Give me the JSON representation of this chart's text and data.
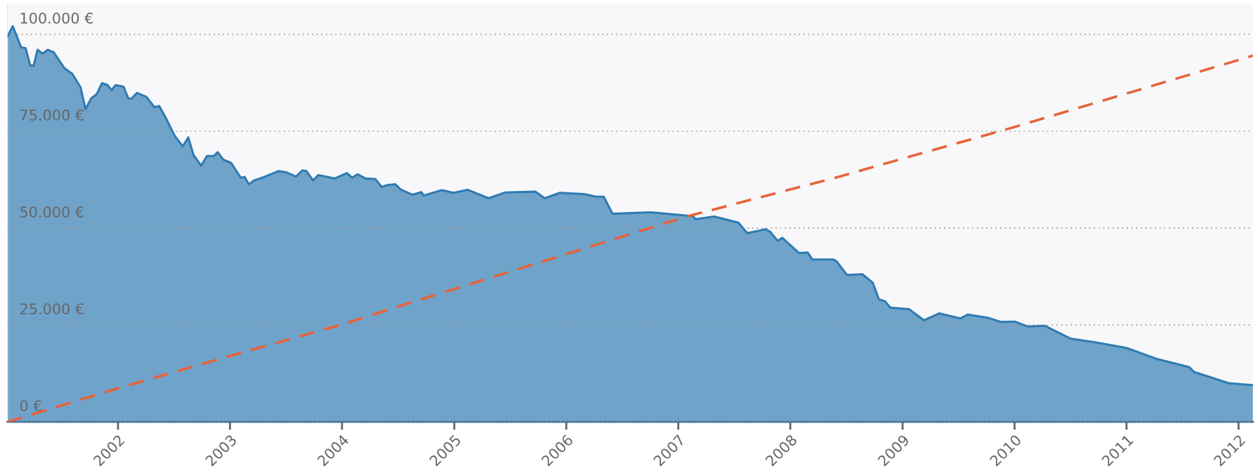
{
  "chart_data": {
    "type": "area",
    "series": [
      {
        "color": "#2f7bb1",
        "x": [
          "2001-01-06",
          "2001-01-23",
          "2001-02-19",
          "2001-03-06",
          "2001-03-21",
          "2001-04-01",
          "2001-04-14",
          "2001-04-30",
          "2001-05-17",
          "2001-06-05",
          "2001-07-10",
          "2001-08-05",
          "2001-09-01",
          "2001-09-17",
          "2001-10-06",
          "2001-10-24",
          "2001-11-10",
          "2001-11-28",
          "2001-12-11",
          "2001-12-24",
          "2002-01-19",
          "2002-02-04",
          "2002-02-14",
          "2002-03-04",
          "2002-04-03",
          "2002-04-30",
          "2002-05-15",
          "2002-06-04",
          "2002-07-05",
          "2002-07-31",
          "2002-08-18",
          "2002-09-04",
          "2002-09-29",
          "2002-10-18",
          "2002-11-09",
          "2002-11-22",
          "2002-12-10",
          "2003-01-05",
          "2003-02-05",
          "2003-02-18",
          "2003-03-03",
          "2003-03-20",
          "2003-04-16",
          "2003-05-08",
          "2003-06-07",
          "2003-07-04",
          "2003-08-04",
          "2003-08-25",
          "2003-09-07",
          "2003-09-29",
          "2003-10-16",
          "2003-12-08",
          "2004-01-17",
          "2004-02-03",
          "2004-02-21",
          "2004-03-18",
          "2004-04-18",
          "2004-05-10",
          "2004-05-27",
          "2004-06-23",
          "2004-07-10",
          "2004-08-18",
          "2004-09-16",
          "2004-09-23",
          "2004-11-21",
          "2004-12-30",
          "2005-02-13",
          "2005-04-23",
          "2005-06-16",
          "2005-09-23",
          "2005-10-23",
          "2005-12-11",
          "2006-02-27",
          "2006-04-08",
          "2006-05-03",
          "2006-06-01",
          "2006-08-04",
          "2006-10-03",
          "2006-12-11",
          "2007-02-18",
          "2007-02-27",
          "2007-04-28",
          "2007-07-16",
          "2007-08-14",
          "2007-10-12",
          "2007-10-27",
          "2007-11-21",
          "2007-12-06",
          "2008-01-29",
          "2008-02-27",
          "2008-03-13",
          "2008-05-21",
          "2008-05-31",
          "2008-07-04",
          "2008-08-23",
          "2008-09-26",
          "2008-10-16",
          "2008-11-04",
          "2008-11-22",
          "2009-01-22",
          "2009-03-12",
          "2009-04-30",
          "2009-07-08",
          "2009-08-02",
          "2009-10-05",
          "2009-11-18",
          "2010-01-01",
          "2010-02-14",
          "2010-04-09",
          "2010-07-02",
          "2010-09-24",
          "2010-12-31",
          "2011-04-08",
          "2011-07-25",
          "2011-08-09",
          "2011-11-30",
          "2012-02-17"
        ],
        "values": [
          99500,
          102100,
          96700,
          96400,
          92000,
          91900,
          96000,
          95000,
          96000,
          95400,
          91300,
          89800,
          86300,
          80700,
          83500,
          84600,
          87400,
          86900,
          85600,
          86900,
          86500,
          83400,
          83400,
          84900,
          83900,
          81200,
          81500,
          78700,
          73800,
          71100,
          73400,
          68900,
          66100,
          68600,
          68600,
          69600,
          67700,
          66800,
          63000,
          63200,
          61300,
          62300,
          63000,
          63700,
          64700,
          64400,
          63300,
          64900,
          64700,
          62300,
          63700,
          62800,
          64200,
          63000,
          63900,
          62800,
          62700,
          60600,
          61100,
          61300,
          60000,
          58600,
          59300,
          58400,
          59800,
          59100,
          59900,
          57700,
          59200,
          59400,
          57700,
          59100,
          58800,
          58100,
          58100,
          53700,
          53900,
          54100,
          53600,
          53100,
          52300,
          53000,
          51400,
          48700,
          49700,
          49100,
          46700,
          47500,
          43600,
          43700,
          41900,
          41900,
          41400,
          37900,
          38100,
          35900,
          31600,
          31200,
          29500,
          29100,
          26200,
          28000,
          26700,
          27700,
          26900,
          25800,
          25900,
          24600,
          24800,
          21500,
          20500,
          19100,
          16300,
          14100,
          12900,
          10000,
          9500
        ]
      },
      {
        "type": "line",
        "color": "#e8623a",
        "line_style": "dashed",
        "x": [
          "2001-01-06",
          "2002-01-01",
          "2003-01-05",
          "2003-12-30",
          "2004-09-10",
          "2007-01-29",
          "2008-05-31",
          "2010-01-01",
          "2010-12-31",
          "2012-02-17"
        ],
        "values": [
          0,
          8700,
          17100,
          25100,
          31500,
          53000,
          63100,
          76100,
          84700,
          94500
        ]
      }
    ],
    "xlim": [
      "2001-01-06",
      "2012-02-17"
    ],
    "xticks": [
      "2002",
      "2003",
      "2004",
      "2005",
      "2006",
      "2007",
      "2008",
      "2009",
      "2010",
      "2011",
      "2012"
    ],
    "ylim": [
      0,
      108000
    ],
    "yticks": [
      {
        "value": 0,
        "label": "0 €"
      },
      {
        "value": 25000,
        "label": "25.000 €"
      },
      {
        "value": 50000,
        "label": "50.000 €"
      },
      {
        "value": 75000,
        "label": "75.000 €"
      },
      {
        "value": 100000,
        "label": "100.000 €"
      }
    ],
    "grid": "y"
  }
}
